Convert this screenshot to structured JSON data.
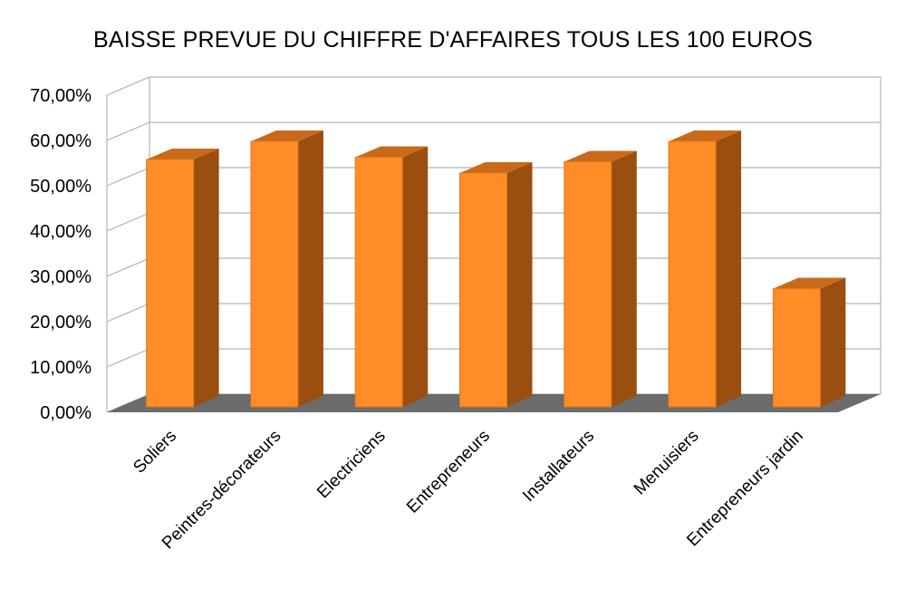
{
  "chart_data": {
    "type": "bar",
    "title": "BAISSE PREVUE DU CHIFFRE D'AFFAIRES TOUS LES 100 EUROS",
    "categories": [
      "Soliers",
      "Peintres-décorateurs",
      "Electriciens",
      "Entrepreneurs",
      "Installateurs",
      "Menuisiers",
      "Entrepreneurs jardin"
    ],
    "values": [
      0.57,
      0.61,
      0.575,
      0.54,
      0.565,
      0.61,
      0.285
    ],
    "yticks": [
      "0,00%",
      "10,00%",
      "20,00%",
      "30,00%",
      "40,00%",
      "50,00%",
      "60,00%",
      "70,00%"
    ],
    "ylim": [
      0,
      0.7
    ],
    "grid": true,
    "three_d": true,
    "colors": {
      "bar_front": "#ff8c26",
      "bar_side": "#9a4f10",
      "bar_top": "#c96a1a",
      "floor": "#6b6b6b",
      "grid": "#b3b3b3"
    }
  }
}
